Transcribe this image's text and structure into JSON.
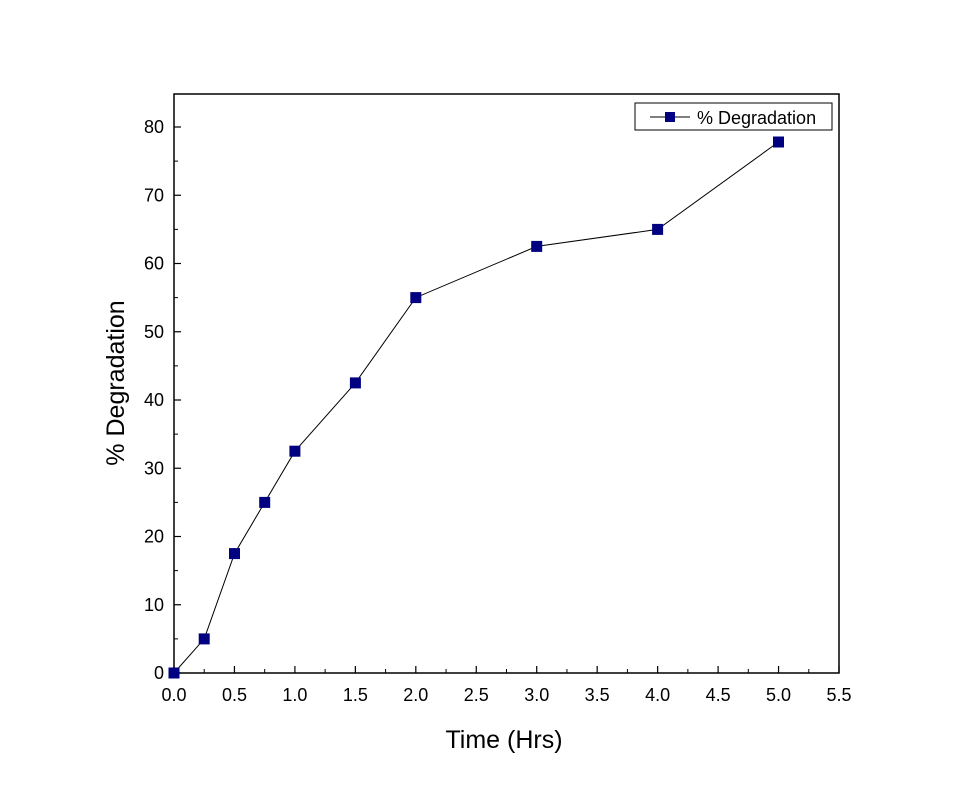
{
  "chart_data": {
    "type": "line",
    "title": "",
    "xlabel": "Time (Hrs)",
    "ylabel": "% Degradation",
    "xlim": [
      0,
      5.5
    ],
    "ylim": [
      0,
      85
    ],
    "x_ticks": [
      "0.0",
      "0.5",
      "1.0",
      "1.5",
      "2.0",
      "2.5",
      "3.0",
      "3.5",
      "4.0",
      "4.5",
      "5.0",
      "5.5"
    ],
    "y_ticks": [
      "0",
      "10",
      "20",
      "30",
      "40",
      "50",
      "60",
      "70",
      "80"
    ],
    "grid": false,
    "legend_position": "top-right",
    "series": [
      {
        "name": "% Degradation",
        "color": "#000080",
        "marker": "square",
        "x": [
          0,
          0.25,
          0.5,
          0.75,
          1.0,
          1.5,
          2.0,
          3.0,
          4.0,
          5.0
        ],
        "y": [
          0,
          5,
          17.5,
          25,
          32.5,
          42.5,
          55,
          62.5,
          65,
          77.8
        ]
      }
    ]
  }
}
